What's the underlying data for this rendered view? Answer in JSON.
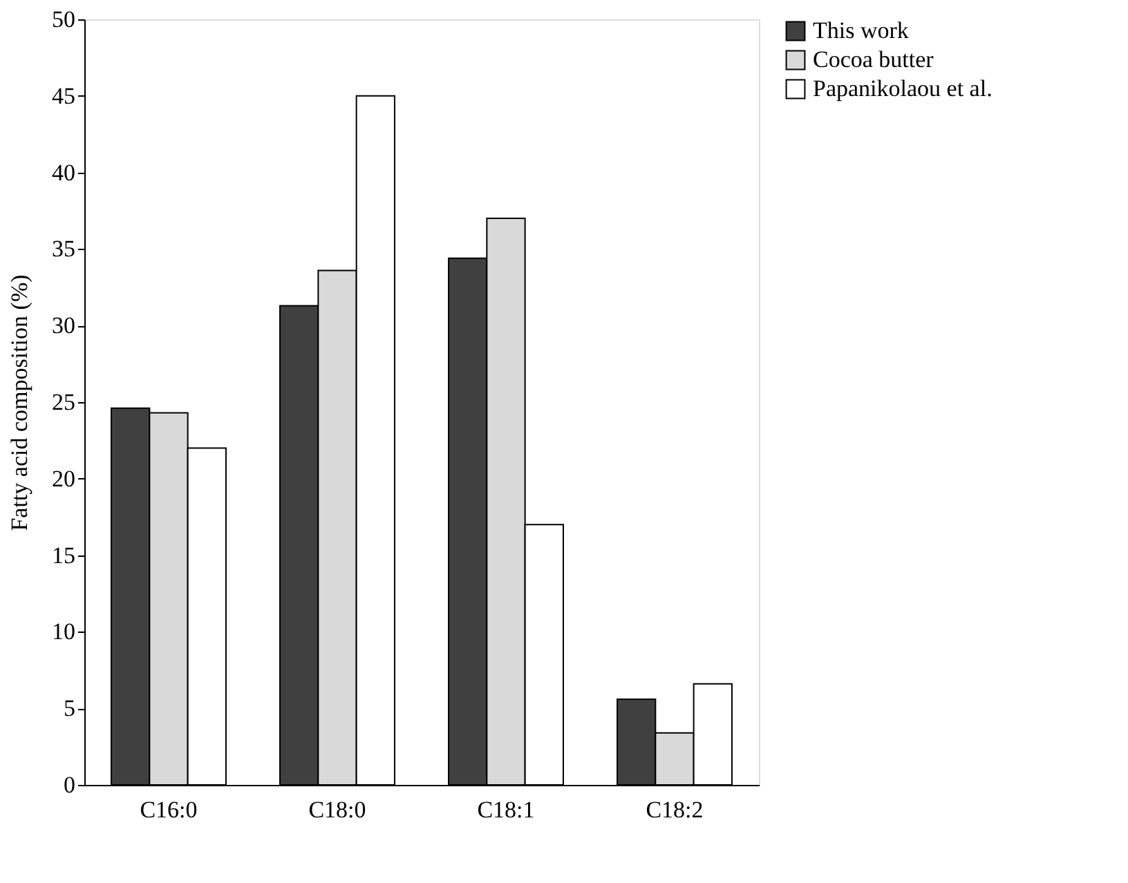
{
  "chart_data": {
    "type": "bar",
    "ylabel": "Fatty acid composition (%)",
    "categories": [
      "C16:0",
      "C18:0",
      "C18:1",
      "C18:2"
    ],
    "series": [
      {
        "name": "This work",
        "color": "#404040",
        "values": [
          24.6,
          31.3,
          34.4,
          5.6
        ]
      },
      {
        "name": "Cocoa butter",
        "color": "#d9d9d9",
        "values": [
          24.3,
          33.6,
          37.0,
          3.4
        ]
      },
      {
        "name": "Papanikolaou et al.",
        "color": "#ffffff",
        "values": [
          22.0,
          45.0,
          17.0,
          6.6
        ]
      }
    ],
    "ylim": [
      0,
      50
    ],
    "yticks": [
      0,
      5,
      10,
      15,
      20,
      25,
      30,
      35,
      40,
      45,
      50
    ],
    "grid": false,
    "legend": "right"
  }
}
